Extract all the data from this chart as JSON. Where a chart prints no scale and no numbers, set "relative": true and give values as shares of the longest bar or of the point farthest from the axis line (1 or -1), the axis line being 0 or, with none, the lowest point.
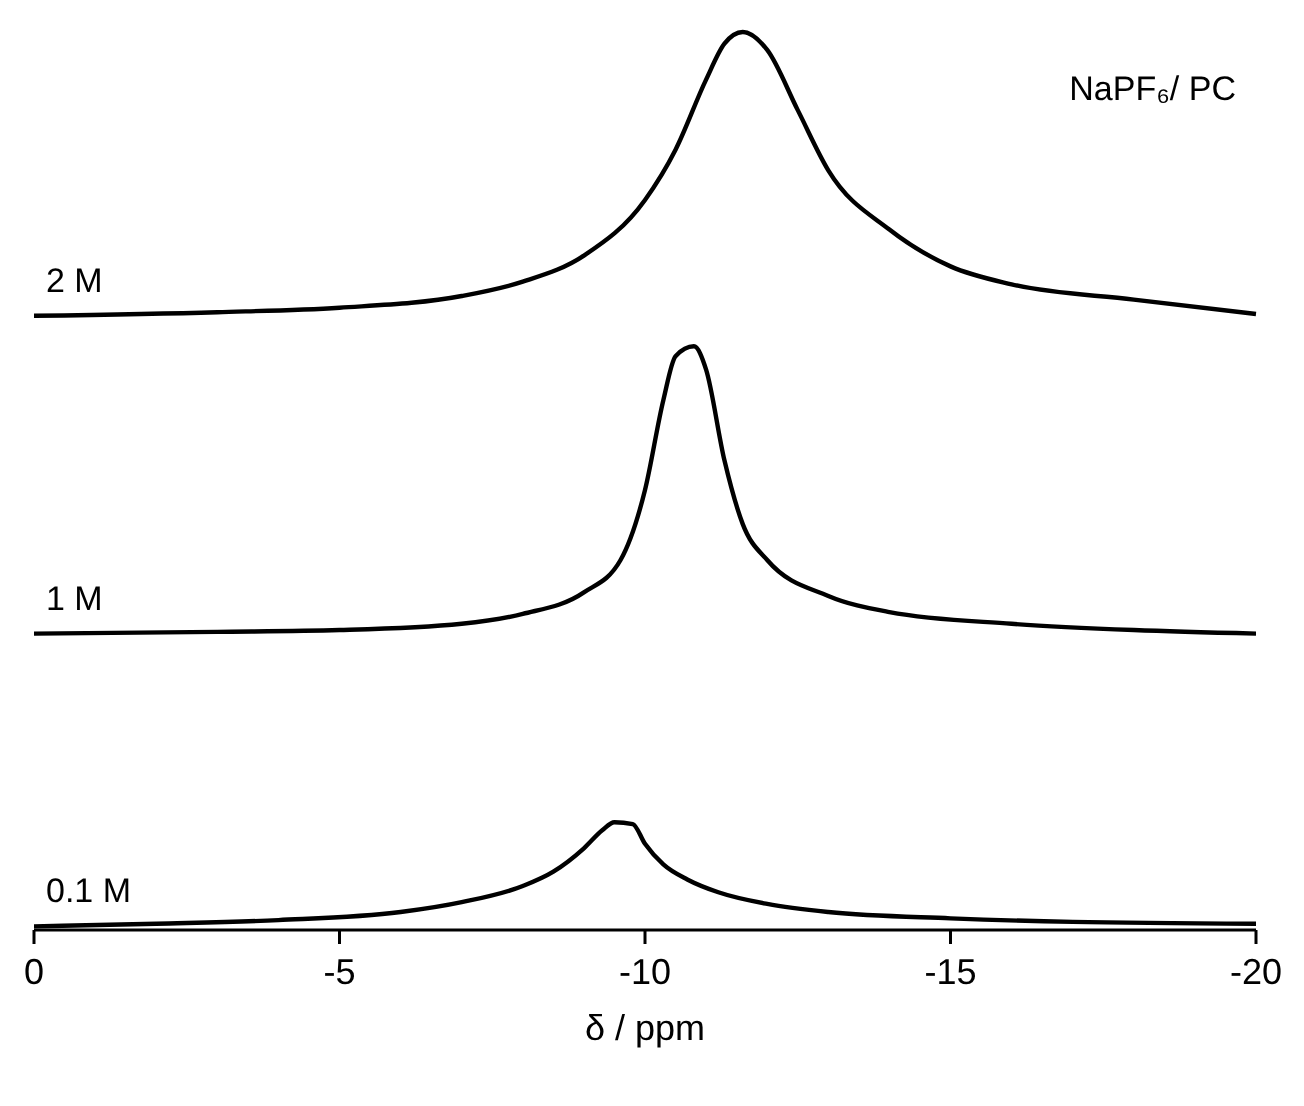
{
  "chart_data": {
    "type": "line",
    "title": "NaPF₆/ PC",
    "xlabel": "δ / ppm",
    "relative": true,
    "xlim": [
      0,
      -20
    ],
    "xticks": [
      0,
      -5,
      -10,
      -15,
      -20
    ],
    "series": [
      {
        "name": "2 M",
        "color": "#000000",
        "x": [
          0,
          -3,
          -5,
          -7,
          -8,
          -9,
          -10,
          -10.5,
          -11,
          -11.3,
          -11.6,
          -12,
          -12.5,
          -13,
          -14,
          -15,
          -16,
          -18,
          -20
        ],
        "values": [
          0.684,
          0.688,
          0.693,
          0.706,
          0.722,
          0.751,
          0.813,
          0.869,
          0.947,
          0.987,
          1.0,
          0.98,
          0.913,
          0.846,
          0.78,
          0.739,
          0.719,
          0.702,
          0.686
        ]
      },
      {
        "name": "1 M",
        "color": "#000000",
        "x": [
          0,
          -3,
          -5,
          -7,
          -8,
          -9,
          -9.6,
          -10,
          -10.3,
          -10.5,
          -10.8,
          -11,
          -11.3,
          -11.6,
          -12,
          -13,
          -14,
          -16,
          -18,
          -20
        ],
        "values": [
          0.33,
          0.332,
          0.334,
          0.341,
          0.352,
          0.376,
          0.412,
          0.49,
          0.59,
          0.639,
          0.65,
          0.624,
          0.523,
          0.452,
          0.412,
          0.372,
          0.354,
          0.341,
          0.334,
          0.33
        ]
      },
      {
        "name": "0.1 M",
        "color": "#000000",
        "x": [
          0,
          -2,
          -4,
          -6,
          -7,
          -8,
          -8.5,
          -9,
          -9.3,
          -9.5,
          -9.8,
          -10,
          -10.3,
          -10.7,
          -11.2,
          -12,
          -13,
          -15,
          -17,
          -20
        ],
        "values": [
          0.004,
          0.007,
          0.011,
          0.02,
          0.031,
          0.049,
          0.065,
          0.091,
          0.111,
          0.12,
          0.118,
          0.096,
          0.073,
          0.056,
          0.042,
          0.029,
          0.02,
          0.013,
          0.009,
          0.007
        ]
      }
    ]
  }
}
